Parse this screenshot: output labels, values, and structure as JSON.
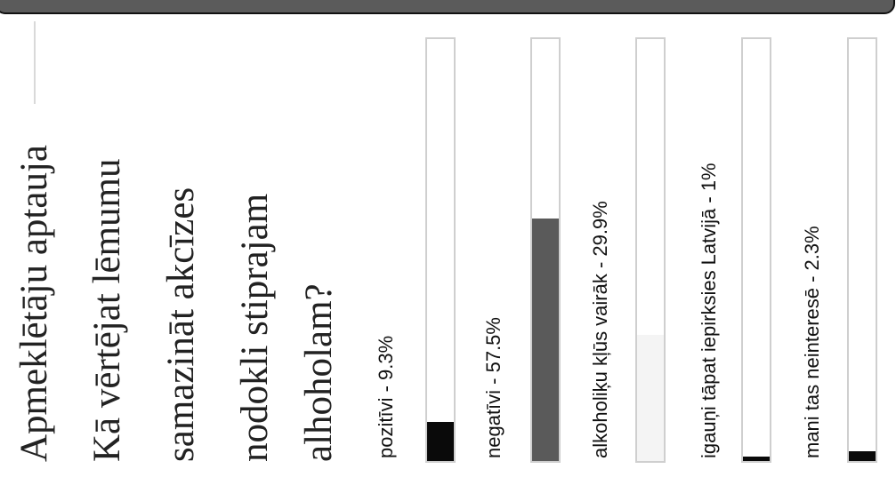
{
  "header": {
    "poll_title": "Apmeklētāju aptauja",
    "question_lines": [
      "Kā vērtējat lēmumu",
      "samazināt akcīzes",
      "nodokli stiprajam",
      "alhoholam?"
    ]
  },
  "colors": {
    "bar_dark": "#0a0a0a",
    "bar_gray": "#5a5a5a",
    "bar_faint": "#f4f4f4",
    "track_border": "#cfcfcf",
    "top_bar": "#5b5b5b"
  },
  "chart_data": {
    "type": "bar",
    "orientation": "vertical",
    "title": "Kā vērtējat lēmumu samazināt akcīzes nodokli stiprajam alhoholam?",
    "categories": [
      "pozitīvi - 9.3%",
      "negatīvi - 57.5%",
      "alkoholiķu kļūs vairāk - 29.9%",
      "igauņi tāpat iepirksies Latvijā - 1%",
      "mani tas neinteresē - 2.3%"
    ],
    "values": [
      9.3,
      57.5,
      29.9,
      1,
      2.3
    ],
    "unit": "%",
    "ylim": [
      0,
      100
    ],
    "bar_colors": [
      "#0a0a0a",
      "#5a5a5a",
      "#f4f4f4",
      "#0a0a0a",
      "#0a0a0a"
    ]
  }
}
